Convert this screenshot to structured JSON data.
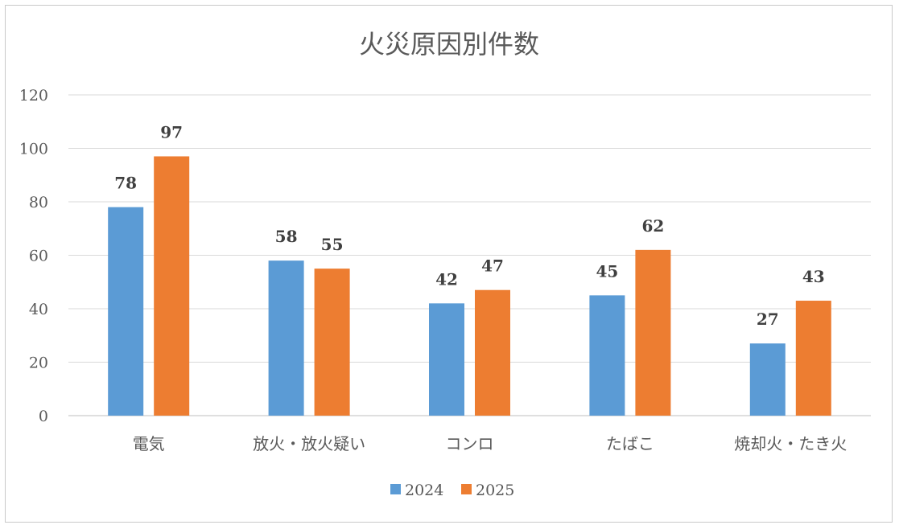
{
  "chart_data": {
    "type": "bar",
    "title": "火災原因別件数",
    "categories": [
      "電気",
      "放火・放火疑い",
      "コンロ",
      "たばこ",
      "焼却火・たき火"
    ],
    "series": [
      {
        "name": "2024",
        "color": "#5b9bd5",
        "values": [
          78,
          58,
          42,
          45,
          27
        ]
      },
      {
        "name": "2025",
        "color": "#ed7d31",
        "values": [
          97,
          55,
          47,
          62,
          43
        ]
      }
    ],
    "ylim": [
      0,
      120
    ],
    "yticks": [
      0,
      20,
      40,
      60,
      80,
      100,
      120
    ],
    "grid": true,
    "data_labels": true,
    "legend": "bottom"
  }
}
